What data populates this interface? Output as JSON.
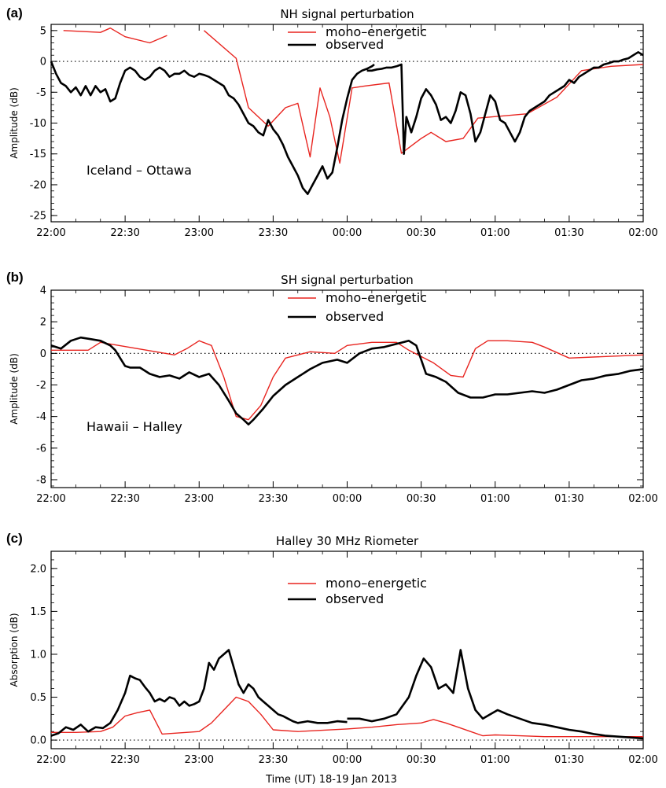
{
  "figure": {
    "xlabel": "Time (UT)   18-19 Jan 2013",
    "x_tick_labels": [
      "22:00",
      "22:30",
      "23:00",
      "23:30",
      "00:00",
      "00:30",
      "01:00",
      "01:30",
      "02:00"
    ],
    "colors": {
      "mono": "#e8241f",
      "observed": "#000000",
      "axis": "#000000"
    }
  },
  "chart_data": [
    {
      "type": "line",
      "panel_label": "(a)",
      "title": "NH signal perturbation",
      "ylabel": "Amplitude (dB)",
      "annotation": "Iceland – Ottawa",
      "xlim": [
        "22:00",
        "02:00"
      ],
      "ylim": [
        -26,
        6
      ],
      "yticks": [
        5,
        0,
        -5,
        -10,
        -15,
        -20,
        -25
      ],
      "reference_line": 0,
      "legend": [
        "mono–energetic",
        "observed"
      ],
      "series": [
        {
          "name": "mono–energetic",
          "segments": [
            {
              "x": [
                "22:05",
                "22:20",
                "22:24",
                "22:30",
                "22:40",
                "22:47"
              ],
              "y": [
                5.0,
                4.7,
                5.4,
                4.0,
                3.0,
                4.2
              ]
            },
            {
              "x": [
                "23:02",
                "23:15",
                "23:20",
                "23:28",
                "23:35",
                "23:40",
                "23:45",
                "23:49",
                "23:53",
                "23:57",
                "24:02",
                "24:07",
                "24:17",
                "24:22",
                "24:30",
                "24:34",
                "24:40",
                "24:47",
                "24:53",
                "25:13",
                "25:25",
                "25:35",
                "25:47",
                "26:00"
              ],
              "y": [
                5.0,
                0.5,
                -7.5,
                -10.5,
                -7.5,
                -6.8,
                -15.5,
                -4.3,
                -9.0,
                -16.5,
                -4.3,
                -4.0,
                -3.5,
                -14.9,
                -12.5,
                -11.5,
                -13.0,
                -12.5,
                -9.2,
                -8.5,
                -5.8,
                -1.5,
                -0.8,
                -0.5
              ]
            }
          ]
        },
        {
          "name": "observed",
          "segments": [
            {
              "x": [
                "22:00",
                "22:02",
                "22:04",
                "22:06",
                "22:08",
                "22:10",
                "22:12",
                "22:14",
                "22:16",
                "22:18",
                "22:20",
                "22:22",
                "22:24",
                "22:26",
                "22:28",
                "22:30",
                "22:32",
                "22:34",
                "22:36",
                "22:38",
                "22:40",
                "22:42",
                "22:44",
                "22:46",
                "22:48",
                "22:50",
                "22:52",
                "22:54",
                "22:56",
                "22:58",
                "23:00",
                "23:02",
                "23:04",
                "23:06",
                "23:08",
                "23:10",
                "23:12",
                "23:14",
                "23:16",
                "23:18",
                "23:20",
                "23:22",
                "23:24",
                "23:26",
                "23:28",
                "23:30",
                "23:32",
                "23:34",
                "23:36",
                "23:38",
                "23:40",
                "23:42",
                "23:44",
                "23:46",
                "23:48",
                "23:50",
                "23:52",
                "23:54",
                "23:56",
                "23:58",
                "24:00",
                "24:02",
                "24:04",
                "24:06",
                "24:08",
                "24:10",
                "24:11"
              ],
              "y": [
                0.0,
                -2.0,
                -3.5,
                -4.0,
                -5.0,
                -4.2,
                -5.5,
                -4.0,
                -5.5,
                -4.0,
                -5.0,
                -4.5,
                -6.5,
                -6.0,
                -3.5,
                -1.5,
                -1.0,
                -1.5,
                -2.5,
                -3.0,
                -2.5,
                -1.5,
                -1.0,
                -1.5,
                -2.5,
                -2.0,
                -2.0,
                -1.5,
                -2.2,
                -2.5,
                -2.0,
                -2.2,
                -2.5,
                -3.0,
                -3.5,
                -4.0,
                -5.5,
                -6.0,
                -7.0,
                -8.5,
                -10.0,
                -10.5,
                -11.5,
                -12.0,
                -9.5,
                -11.0,
                -12.0,
                -13.5,
                -15.5,
                -17.0,
                -18.5,
                -20.5,
                -21.5,
                -20.0,
                -18.5,
                -17.0,
                -19.0,
                -18.0,
                -14.0,
                -9.5,
                -6.0,
                -3.0,
                -2.0,
                -1.5,
                -1.2,
                -0.8,
                -0.5
              ]
            },
            {
              "x": [
                "24:08",
                "24:10",
                "24:12",
                "24:14",
                "24:16",
                "24:18",
                "24:20",
                "24:22",
                "24:23",
                "24:24",
                "24:26",
                "24:28",
                "24:30",
                "24:32",
                "24:34",
                "24:36",
                "24:38",
                "24:40",
                "24:42",
                "24:44",
                "24:46",
                "24:48",
                "24:50",
                "24:52",
                "24:54",
                "24:56",
                "24:58",
                "25:00",
                "25:02",
                "25:04",
                "25:06",
                "25:08",
                "25:10",
                "25:12",
                "25:14",
                "25:16",
                "25:18",
                "25:20",
                "25:22",
                "25:24",
                "25:26",
                "25:28",
                "25:30",
                "25:32",
                "25:34",
                "25:36",
                "25:38",
                "25:40",
                "25:42",
                "25:44",
                "25:46",
                "25:48",
                "25:50",
                "25:52",
                "25:54",
                "25:56",
                "25:58",
                "26:00"
              ],
              "y": [
                -1.5,
                -1.5,
                -1.3,
                -1.2,
                -1.0,
                -1.0,
                -0.8,
                -0.5,
                -15.0,
                -9.0,
                -11.5,
                -9.0,
                -6.0,
                -4.5,
                -5.5,
                -7.0,
                -9.5,
                -9.0,
                -10.0,
                -8.0,
                -5.0,
                -5.5,
                -8.5,
                -13.0,
                -11.5,
                -8.5,
                -5.5,
                -6.5,
                -9.5,
                -10.0,
                -11.5,
                -13.0,
                -11.5,
                -9.0,
                -8.0,
                -7.5,
                -7.0,
                -6.5,
                -5.5,
                -5.0,
                -4.5,
                -4.0,
                -3.0,
                -3.5,
                -2.5,
                -2.0,
                -1.5,
                -1.0,
                -1.0,
                -0.5,
                -0.3,
                0.0,
                0.0,
                0.3,
                0.5,
                1.0,
                1.5,
                1.0
              ]
            }
          ]
        }
      ]
    },
    {
      "type": "line",
      "panel_label": "(b)",
      "title": "SH signal perturbation",
      "ylabel": "Amplitude (dB)",
      "annotation": "Hawaii – Halley",
      "xlim": [
        "22:00",
        "02:00"
      ],
      "ylim": [
        -8.5,
        4
      ],
      "yticks": [
        4,
        2,
        0,
        -2,
        -4,
        -6,
        -8
      ],
      "reference_line": 0,
      "legend": [
        "mono–energetic",
        "observed"
      ],
      "series": [
        {
          "name": "mono–energetic",
          "segments": [
            {
              "x": [
                "22:00",
                "22:15",
                "22:20",
                "22:35",
                "22:50",
                "22:55",
                "23:00",
                "23:05",
                "23:10",
                "23:15",
                "23:20",
                "23:25",
                "23:30",
                "23:35",
                "23:45",
                "23:55",
                "24:00",
                "24:10",
                "24:20",
                "24:25",
                "24:35",
                "24:42",
                "24:47",
                "24:52",
                "24:57",
                "25:05",
                "25:15",
                "25:20",
                "25:30",
                "26:00"
              ],
              "y": [
                0.2,
                0.2,
                0.7,
                0.3,
                -0.1,
                0.3,
                0.8,
                0.5,
                -1.5,
                -4.0,
                -4.2,
                -3.3,
                -1.5,
                -0.3,
                0.1,
                0.0,
                0.5,
                0.7,
                0.7,
                0.2,
                -0.6,
                -1.4,
                -1.5,
                0.3,
                0.8,
                0.8,
                0.7,
                0.4,
                -0.3,
                -0.1
              ]
            }
          ]
        },
        {
          "name": "observed",
          "segments": [
            {
              "x": [
                "22:00",
                "22:04",
                "22:08",
                "22:12",
                "22:16",
                "22:20",
                "22:24",
                "22:26",
                "22:28",
                "22:30",
                "22:32",
                "22:36",
                "22:40",
                "22:44",
                "22:48",
                "22:52",
                "22:56",
                "23:00",
                "23:04",
                "23:08",
                "23:12",
                "23:15",
                "23:18",
                "23:20",
                "23:22",
                "23:26",
                "23:30",
                "23:35",
                "23:40",
                "23:45",
                "23:50",
                "23:56",
                "24:00",
                "24:05",
                "24:10",
                "24:15",
                "24:20",
                "24:25",
                "24:28",
                "24:32",
                "24:36",
                "24:40",
                "24:45",
                "24:50",
                "24:55",
                "25:00",
                "25:05",
                "25:10",
                "25:15",
                "25:20",
                "25:25",
                "25:30",
                "25:35",
                "25:40",
                "25:45",
                "25:50",
                "25:55",
                "26:00"
              ],
              "y": [
                0.5,
                0.3,
                0.8,
                1.0,
                0.9,
                0.8,
                0.5,
                0.2,
                -0.3,
                -0.8,
                -0.9,
                -0.9,
                -1.3,
                -1.5,
                -1.4,
                -1.6,
                -1.2,
                -1.5,
                -1.3,
                -2.0,
                -3.0,
                -3.8,
                -4.2,
                -4.5,
                -4.2,
                -3.5,
                -2.7,
                -2.0,
                -1.5,
                -1.0,
                -0.6,
                -0.4,
                -0.6,
                0.0,
                0.3,
                0.4,
                0.6,
                0.8,
                0.5,
                -1.3,
                -1.5,
                -1.8,
                -2.5,
                -2.8,
                -2.8,
                -2.6,
                -2.6,
                -2.5,
                -2.4,
                -2.5,
                -2.3,
                -2.0,
                -1.7,
                -1.6,
                -1.4,
                -1.3,
                -1.1,
                -1.0
              ]
            }
          ]
        }
      ]
    },
    {
      "type": "line",
      "panel_label": "(c)",
      "title": "Halley 30 MHz Riometer",
      "ylabel": "Absorption (dB)",
      "annotation": "",
      "xlim": [
        "22:00",
        "02:00"
      ],
      "ylim": [
        -0.1,
        2.2
      ],
      "yticks": [
        2.0,
        1.5,
        1.0,
        0.5,
        0.0
      ],
      "reference_line": 0,
      "legend": [
        "mono–energetic",
        "observed"
      ],
      "series": [
        {
          "name": "mono–energetic",
          "segments": [
            {
              "x": [
                "22:00",
                "22:10",
                "22:20",
                "22:25",
                "22:30",
                "22:35",
                "22:40",
                "22:45",
                "23:00",
                "23:05",
                "23:10",
                "23:15",
                "23:20",
                "23:25",
                "23:30",
                "23:40",
                "24:00",
                "24:10",
                "24:20",
                "24:30",
                "24:35",
                "24:40",
                "24:45",
                "24:50",
                "24:55",
                "25:00",
                "25:10",
                "25:20",
                "25:40",
                "26:00"
              ],
              "y": [
                0.09,
                0.09,
                0.1,
                0.15,
                0.28,
                0.32,
                0.35,
                0.07,
                0.1,
                0.2,
                0.35,
                0.5,
                0.45,
                0.3,
                0.12,
                0.1,
                0.13,
                0.15,
                0.18,
                0.2,
                0.24,
                0.2,
                0.15,
                0.1,
                0.05,
                0.06,
                0.05,
                0.04,
                0.04,
                0.04
              ]
            }
          ]
        },
        {
          "name": "observed",
          "segments": [
            {
              "x": [
                "22:00",
                "22:03",
                "22:06",
                "22:09",
                "22:12",
                "22:15",
                "22:18",
                "22:21",
                "22:24",
                "22:27",
                "22:30",
                "22:32",
                "22:34",
                "22:36",
                "22:38",
                "22:40",
                "22:42",
                "22:44",
                "22:46",
                "22:48",
                "22:50",
                "22:52",
                "22:54",
                "22:56",
                "22:58",
                "23:00",
                "23:02",
                "23:04",
                "23:06",
                "23:08",
                "23:10",
                "23:12",
                "23:14",
                "23:16",
                "23:18",
                "23:20",
                "23:22",
                "23:24",
                "23:26",
                "23:28",
                "23:30",
                "23:32",
                "23:34",
                "23:36",
                "23:38",
                "23:40",
                "23:44",
                "23:48",
                "23:52",
                "23:56",
                "24:00"
              ],
              "y": [
                0.05,
                0.08,
                0.15,
                0.12,
                0.18,
                0.1,
                0.15,
                0.14,
                0.2,
                0.35,
                0.55,
                0.75,
                0.72,
                0.7,
                0.62,
                0.55,
                0.45,
                0.48,
                0.45,
                0.5,
                0.48,
                0.4,
                0.45,
                0.4,
                0.42,
                0.45,
                0.6,
                0.9,
                0.82,
                0.95,
                1.0,
                1.05,
                0.85,
                0.65,
                0.55,
                0.65,
                0.6,
                0.5,
                0.45,
                0.4,
                0.35,
                0.3,
                0.28,
                0.25,
                0.22,
                0.2,
                0.22,
                0.2,
                0.2,
                0.22,
                0.21
              ]
            },
            {
              "x": [
                "24:00",
                "24:05",
                "24:10",
                "24:15",
                "24:20",
                "24:25",
                "24:28",
                "24:31",
                "24:34",
                "24:37",
                "24:40",
                "24:43",
                "24:46",
                "24:49",
                "24:52",
                "24:55",
                "24:58",
                "25:01",
                "25:05",
                "25:10",
                "25:15",
                "25:20",
                "25:25",
                "25:30",
                "25:35",
                "25:40",
                "25:45",
                "25:50",
                "25:55",
                "26:00"
              ],
              "y": [
                0.25,
                0.25,
                0.22,
                0.25,
                0.3,
                0.5,
                0.75,
                0.95,
                0.85,
                0.6,
                0.65,
                0.55,
                1.05,
                0.6,
                0.35,
                0.25,
                0.3,
                0.35,
                0.3,
                0.25,
                0.2,
                0.18,
                0.15,
                0.12,
                0.1,
                0.07,
                0.05,
                0.04,
                0.03,
                0.02
              ]
            }
          ]
        }
      ]
    }
  ]
}
